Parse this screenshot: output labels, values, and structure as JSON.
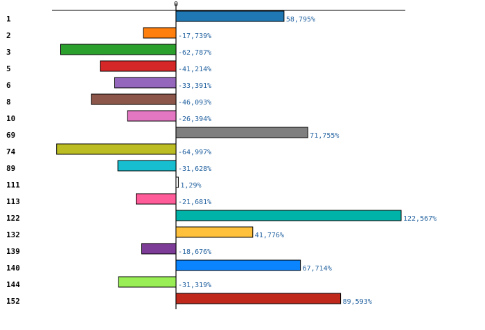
{
  "chart_data": {
    "type": "bar",
    "orientation": "horizontal",
    "title": "",
    "xlabel": "",
    "ylabel": "",
    "xlim": [
      -68,
      125
    ],
    "zero_tick_label": "0",
    "grid": false,
    "categories": [
      "1",
      "2",
      "3",
      "5",
      "6",
      "8",
      "10",
      "69",
      "74",
      "89",
      "111",
      "113",
      "122",
      "132",
      "139",
      "140",
      "144",
      "152"
    ],
    "values": [
      58.795,
      -17.739,
      -62.787,
      -41.214,
      -33.391,
      -46.093,
      -26.394,
      71.755,
      -64.997,
      -31.628,
      1.29,
      -21.681,
      122.567,
      41.776,
      -18.676,
      67.714,
      -31.319,
      89.593
    ],
    "value_labels": [
      "58,795%",
      "-17,739%",
      "-62,787%",
      "-41,214%",
      "-33,391%",
      "-46,093%",
      "-26,394%",
      "71,755%",
      "-64,997%",
      "-31,628%",
      "1,29%",
      "-21,681%",
      "122,567%",
      "41,776%",
      "-18,676%",
      "67,714%",
      "-31,319%",
      "89,593%"
    ],
    "colors": [
      "#1f77b4",
      "#ff7f0e",
      "#2ca02c",
      "#d62728",
      "#9467bd",
      "#8c564b",
      "#e377c2",
      "#7f7f7f",
      "#bcbd22",
      "#17becf",
      "#ffffff",
      "#ff5c99",
      "#00b3a8",
      "#ffc13b",
      "#7d3c98",
      "#0a84ff",
      "#99ee55",
      "#c0281b"
    ]
  }
}
